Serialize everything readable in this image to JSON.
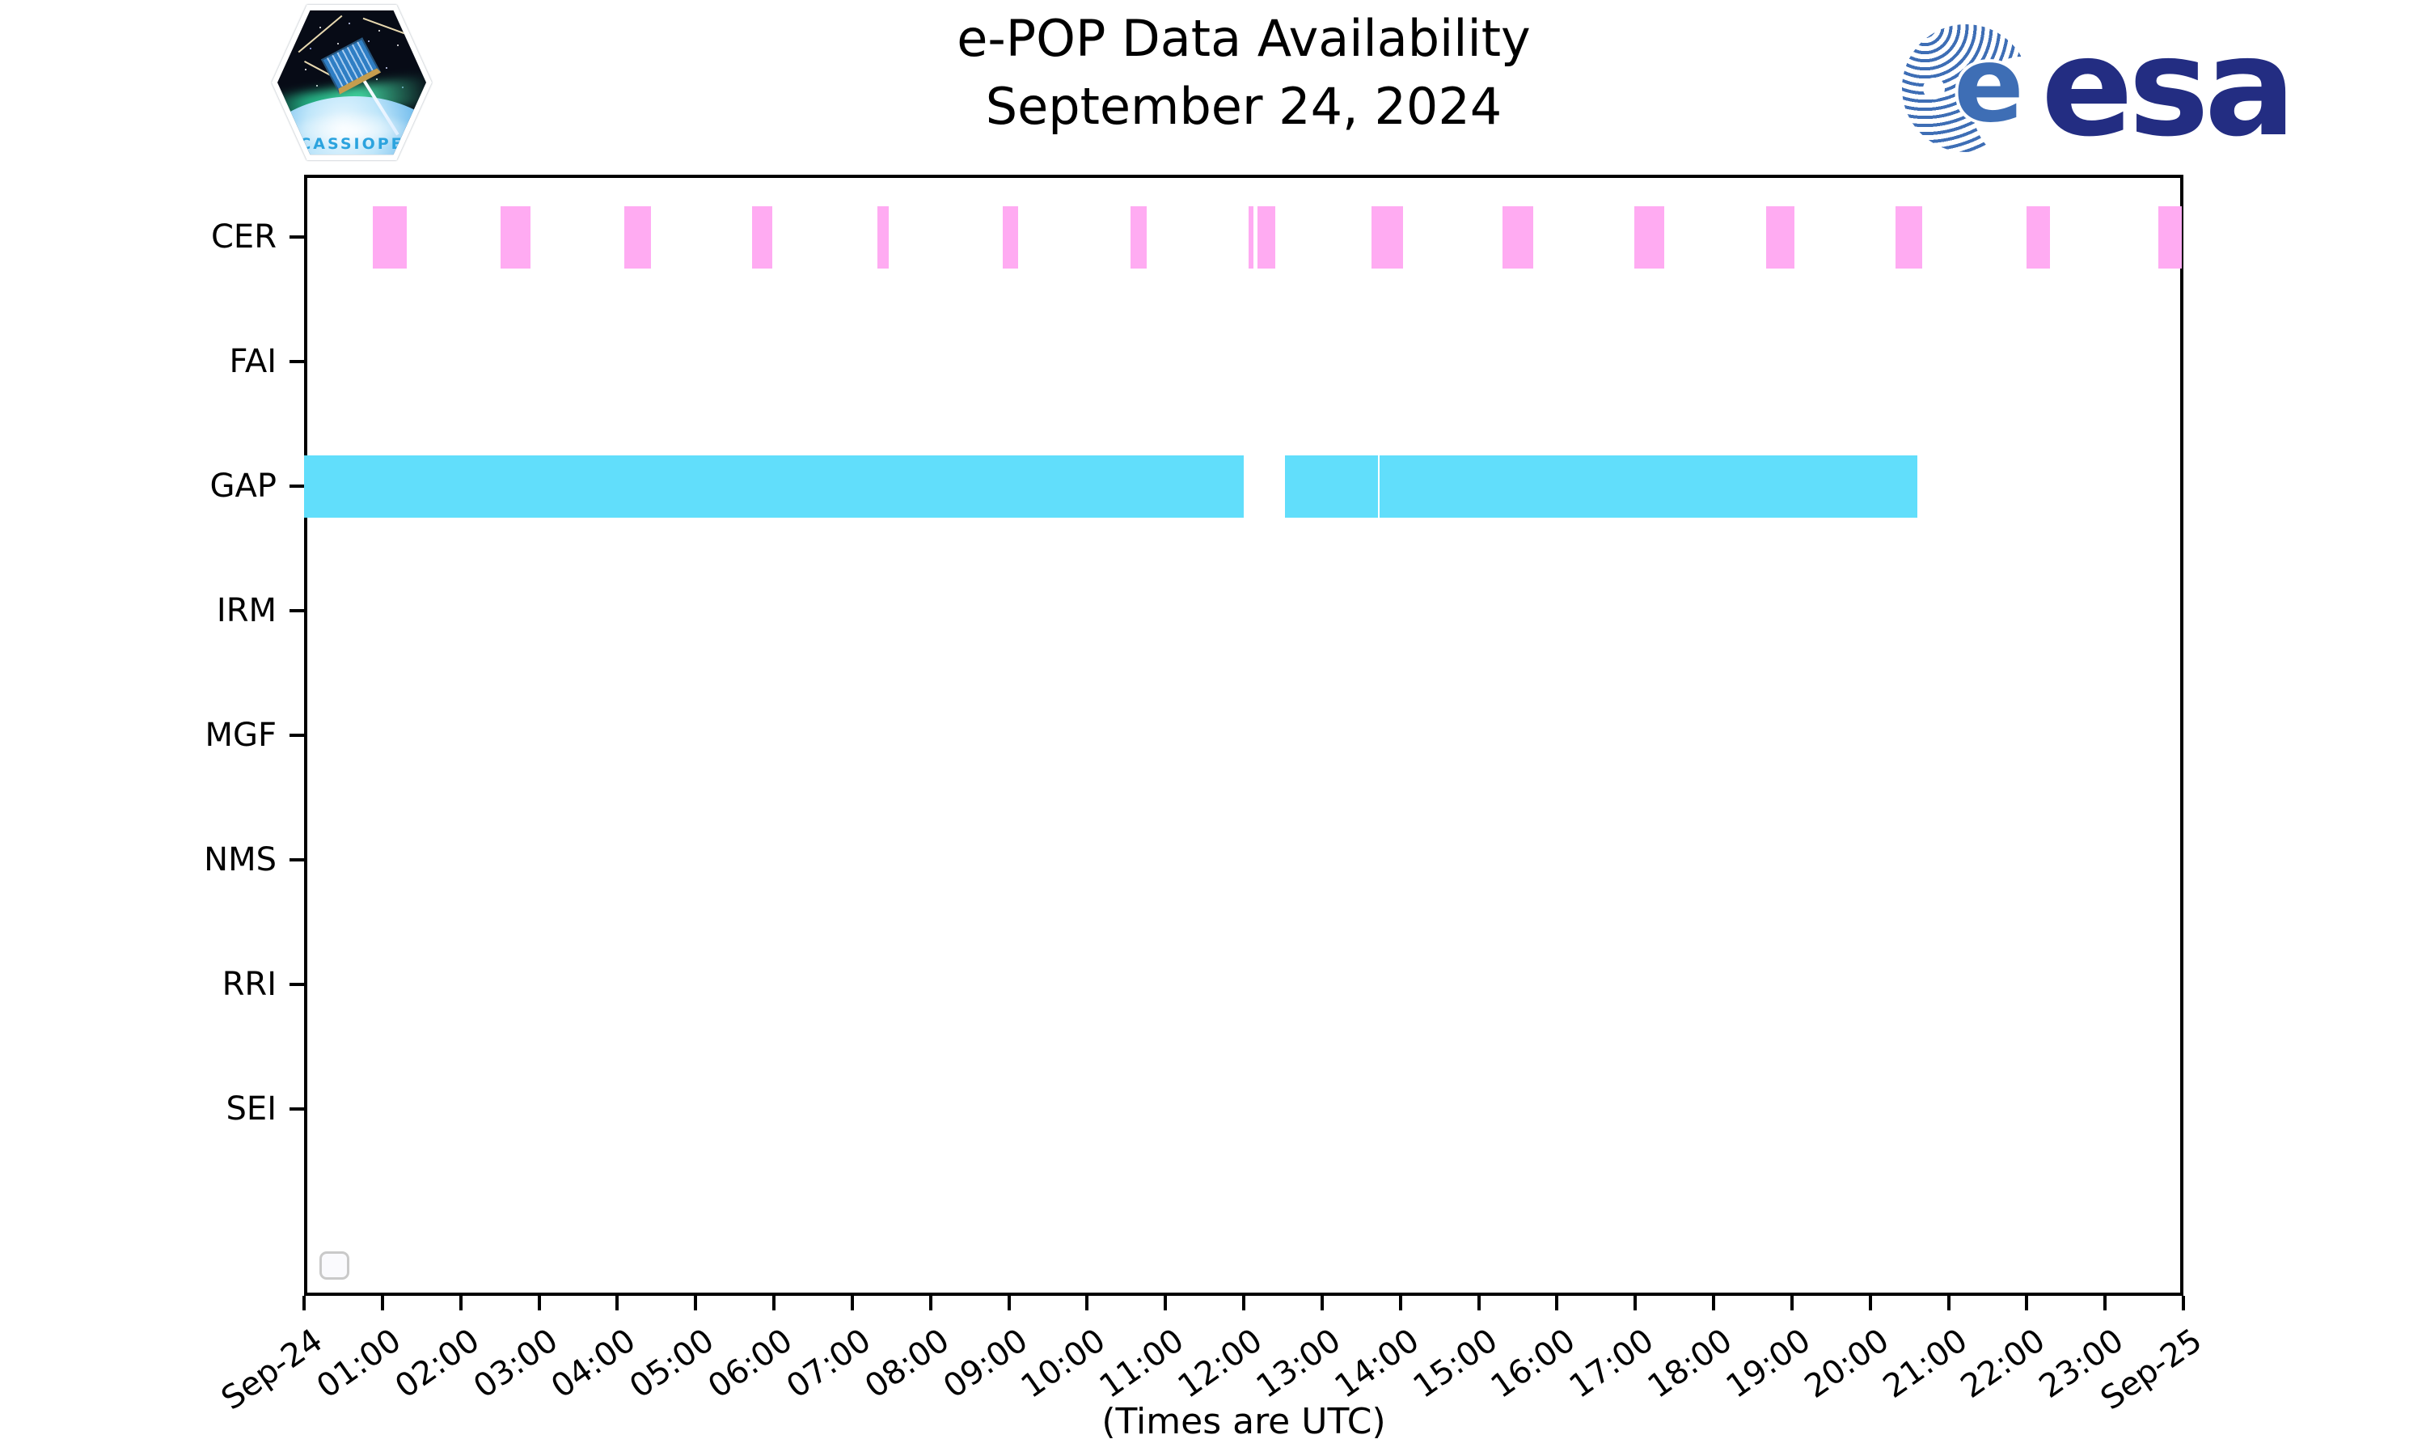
{
  "header": {
    "title_line1": "e-POP Data Availability",
    "title_line2": "September 24, 2024",
    "cassiope_patch_label": "CASSIOPE",
    "esa_globe_e": "e",
    "esa_wordmark": "esa"
  },
  "footer_note": "(Times are UTC)",
  "colors": {
    "cer_bar": "#ffabf2",
    "gap_bar": "#61defb",
    "axis": "#000000",
    "esa_navy": "#232d82",
    "esa_stripe_blue": "#3e6eb5",
    "cassiope_text_blue": "#2ba3de",
    "legend_box_border": "#c9c9c9"
  },
  "legend": {
    "empty": true,
    "entries": []
  },
  "chart_data": {
    "type": "broken_barh_timeline",
    "title": "e-POP Data Availability",
    "subtitle": "September 24, 2024",
    "xlabel": "(Times are UTC)",
    "x_axis": {
      "range_hours": [
        0,
        24
      ],
      "grid": false,
      "ticks": [
        {
          "h": 0,
          "label": "Sep-24"
        },
        {
          "h": 1,
          "label": "01:00"
        },
        {
          "h": 2,
          "label": "02:00"
        },
        {
          "h": 3,
          "label": "03:00"
        },
        {
          "h": 4,
          "label": "04:00"
        },
        {
          "h": 5,
          "label": "05:00"
        },
        {
          "h": 6,
          "label": "06:00"
        },
        {
          "h": 7,
          "label": "07:00"
        },
        {
          "h": 8,
          "label": "08:00"
        },
        {
          "h": 9,
          "label": "09:00"
        },
        {
          "h": 10,
          "label": "10:00"
        },
        {
          "h": 11,
          "label": "11:00"
        },
        {
          "h": 12,
          "label": "12:00"
        },
        {
          "h": 13,
          "label": "13:00"
        },
        {
          "h": 14,
          "label": "14:00"
        },
        {
          "h": 15,
          "label": "15:00"
        },
        {
          "h": 16,
          "label": "16:00"
        },
        {
          "h": 17,
          "label": "17:00"
        },
        {
          "h": 18,
          "label": "18:00"
        },
        {
          "h": 19,
          "label": "19:00"
        },
        {
          "h": 20,
          "label": "20:00"
        },
        {
          "h": 21,
          "label": "21:00"
        },
        {
          "h": 22,
          "label": "22:00"
        },
        {
          "h": 23,
          "label": "23:00"
        },
        {
          "h": 24,
          "label": "Sep-25"
        }
      ]
    },
    "rows": [
      "CER",
      "FAI",
      "GAP",
      "IRM",
      "MGF",
      "NMS",
      "RRI",
      "SEI"
    ],
    "series": [
      {
        "name": "CER",
        "color": "#ffabf2",
        "intervals_hours": [
          [
            0.88,
            1.31
          ],
          [
            2.51,
            2.89
          ],
          [
            4.09,
            4.43
          ],
          [
            5.72,
            5.98
          ],
          [
            7.32,
            7.47
          ],
          [
            8.92,
            9.12
          ],
          [
            10.55,
            10.76
          ],
          [
            12.06,
            12.12
          ],
          [
            12.18,
            12.4
          ],
          [
            13.63,
            14.03
          ],
          [
            15.3,
            15.7
          ],
          [
            16.99,
            17.37
          ],
          [
            18.67,
            19.03
          ],
          [
            20.32,
            20.66
          ],
          [
            22.0,
            22.3
          ],
          [
            23.68,
            23.98
          ]
        ]
      },
      {
        "name": "FAI",
        "color": "#ffabf2",
        "intervals_hours": []
      },
      {
        "name": "GAP",
        "color": "#61defb",
        "intervals_hours": [
          [
            0.0,
            12.0
          ],
          [
            12.53,
            13.71
          ],
          [
            13.74,
            20.6
          ]
        ]
      },
      {
        "name": "IRM",
        "color": "#61defb",
        "intervals_hours": []
      },
      {
        "name": "MGF",
        "color": "#ffabf2",
        "intervals_hours": []
      },
      {
        "name": "NMS",
        "color": "#ffabf2",
        "intervals_hours": []
      },
      {
        "name": "RRI",
        "color": "#61defb",
        "intervals_hours": []
      },
      {
        "name": "SEI",
        "color": "#ffabf2",
        "intervals_hours": []
      }
    ]
  }
}
